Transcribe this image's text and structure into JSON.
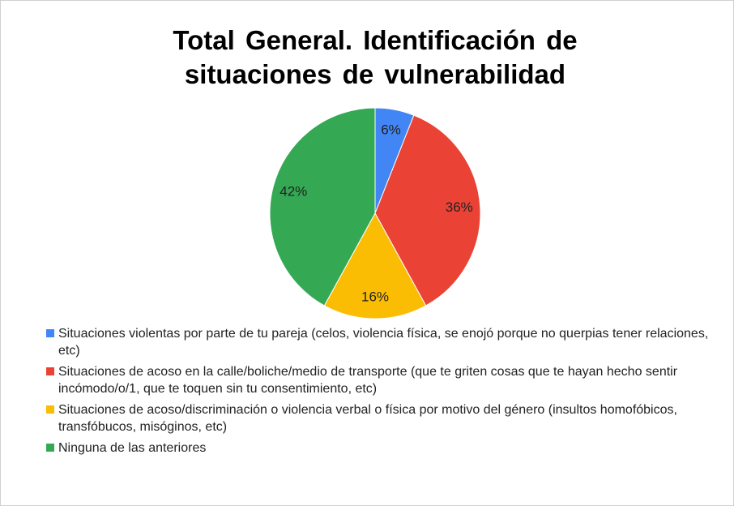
{
  "chart_data": {
    "type": "pie",
    "title": "Total General. Identificación de situaciones de vulnerabilidad",
    "categories": [
      "Situaciones violentas por parte de tu pareja (celos, violencia física, se enojó porque no querpias tener relaciones, etc)",
      "Situaciones de acoso en la calle/boliche/medio de transporte (que te griten cosas que te hayan hecho sentir incómodo/o/1, que te toquen sin tu consentimiento, etc)",
      "Situaciones de acoso/discriminación o violencia verbal o física por motivo del género (insultos homofóbicos, transfóbucos, misóginos, etc)",
      "Ninguna de las anteriores"
    ],
    "values": [
      6,
      36,
      16,
      42
    ],
    "value_labels": [
      "6%",
      "36%",
      "16%",
      "42%"
    ],
    "colors": [
      "#4285f4",
      "#ea4335",
      "#fbbc04",
      "#34a853"
    ],
    "legend": "bottom"
  }
}
